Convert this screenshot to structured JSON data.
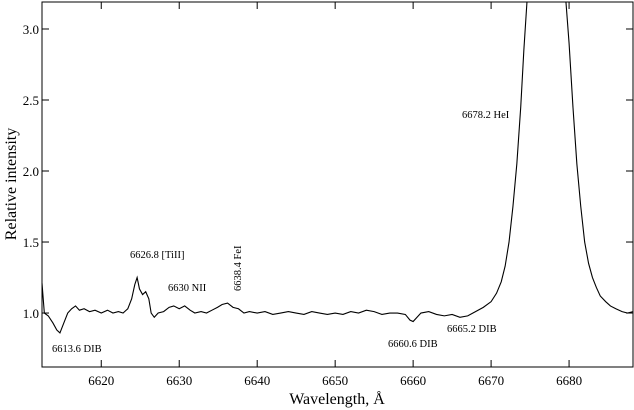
{
  "chart_data": {
    "type": "line",
    "xlabel": "Wavelength, Å",
    "ylabel": "Relative intensity",
    "xlim": [
      6612.4,
      6688.2
    ],
    "ylim": [
      0.62,
      3.19
    ],
    "xticks": [
      6620,
      6630,
      6640,
      6650,
      6660,
      6670,
      6680
    ],
    "yticks": [
      {
        "value": 1,
        "label": "1.0"
      },
      1.5,
      {
        "value": 2,
        "label": "2.0"
      },
      2.5,
      {
        "value": 3,
        "label": "3.0"
      }
    ],
    "annotations": [
      "6613.6 DIB",
      "6626.8 [TiII]",
      "6630 NII",
      "6638.4 FeI",
      "6660.6 DIB",
      "6665.2 DIB",
      "6678.2 HeI"
    ],
    "x": [
      6612.4,
      6612.7,
      6613.2,
      6613.8,
      6614.3,
      6614.7,
      6615.2,
      6615.7,
      6616.2,
      6616.7,
      6617.2,
      6617.8,
      6618.5,
      6619.2,
      6620,
      6620.8,
      6621.5,
      6622.2,
      6622.8,
      6623.4,
      6623.9,
      6624.3,
      6624.6,
      6624.9,
      6625.3,
      6625.7,
      6626.1,
      6626.4,
      6626.8,
      6627.3,
      6628,
      6628.7,
      6629.3,
      6630,
      6630.7,
      6631.4,
      6632,
      6632.8,
      6633.5,
      6634.2,
      6634.9,
      6635.5,
      6636.2,
      6636.9,
      6637.6,
      6638.3,
      6639,
      6640,
      6641,
      6642,
      6643,
      6644,
      6645,
      6646,
      6647,
      6648,
      6649,
      6650,
      6651,
      6652,
      6653,
      6654,
      6655,
      6656,
      6657,
      6658,
      6659,
      6659.6,
      6660,
      6660.5,
      6661,
      6662,
      6663,
      6664,
      6665,
      6666,
      6667,
      6668,
      6669,
      6670,
      6670.7,
      6671.3,
      6671.8,
      6672.3,
      6672.8,
      6673.3,
      6673.8,
      6674.2,
      6674.6,
      6677,
      6679.6,
      6680,
      6680.5,
      6681,
      6681.5,
      6682,
      6682.5,
      6683,
      6683.5,
      6684,
      6684.7,
      6685.3,
      6686,
      6686.8,
      6687.5,
      6688.2
    ],
    "series": [
      {
        "color": "#000000",
        "values": [
          1.21,
          1.0,
          0.98,
          0.93,
          0.88,
          0.86,
          0.93,
          1.0,
          1.03,
          1.05,
          1.02,
          1.03,
          1.01,
          1.02,
          1.0,
          1.02,
          1.0,
          1.01,
          1.0,
          1.03,
          1.1,
          1.2,
          1.25,
          1.17,
          1.13,
          1.15,
          1.1,
          1.0,
          0.97,
          1.0,
          1.01,
          1.04,
          1.05,
          1.03,
          1.05,
          1.02,
          1.0,
          1.01,
          1.0,
          1.02,
          1.04,
          1.06,
          1.07,
          1.04,
          1.03,
          1.0,
          1.01,
          1.0,
          1.01,
          0.99,
          1.0,
          1.01,
          1.0,
          0.99,
          1.01,
          1.0,
          0.99,
          1.0,
          0.99,
          1.01,
          1.0,
          1.02,
          1.01,
          0.99,
          1.0,
          1.0,
          0.99,
          0.95,
          0.94,
          0.97,
          1.0,
          1.01,
          0.99,
          0.98,
          0.99,
          0.97,
          0.98,
          1.01,
          1.04,
          1.08,
          1.14,
          1.22,
          1.33,
          1.5,
          1.75,
          2.05,
          2.45,
          2.85,
          3.19,
          null,
          3.19,
          2.9,
          2.45,
          2.05,
          1.75,
          1.5,
          1.35,
          1.25,
          1.18,
          1.12,
          1.08,
          1.05,
          1.03,
          1.01,
          1.0,
          1.01
        ]
      }
    ]
  }
}
